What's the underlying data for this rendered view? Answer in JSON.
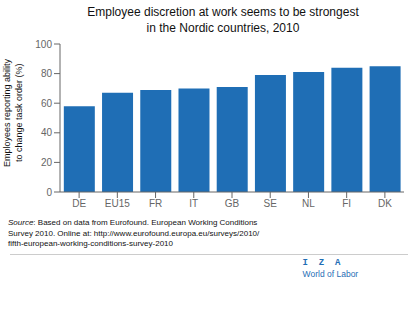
{
  "chart_data": {
    "type": "bar",
    "title": "Employee discretion at work seems to be strongest\nin the Nordic countries, 2010",
    "ylabel": "Employees reporting ability\nto change task order (%)",
    "categories": [
      "DE",
      "EU15",
      "FR",
      "IT",
      "GB",
      "SE",
      "NL",
      "FI",
      "DK"
    ],
    "values": [
      58,
      67,
      69,
      70,
      71,
      79,
      81,
      84,
      85
    ],
    "color": "#1F6EB5",
    "ylim": [
      0,
      100
    ],
    "yticks": [
      0,
      20,
      40,
      60,
      80,
      100
    ],
    "grid": false,
    "annotations": [
      "Source: Based on data from Eurofound. European Working Conditions\nSurvey 2010. Online at: http://www.eurofound.europa.eu/surveys/2010/\nfifth-european-working-conditions-survey-2010",
      "I  Z  A",
      "World of Labor"
    ]
  }
}
